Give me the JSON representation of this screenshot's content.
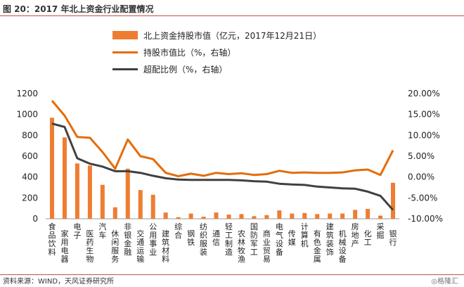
{
  "page": {
    "title": "图 20：2017 年北上资金行业配置情况",
    "source": "资料来源：WIND，天风证券研究所",
    "watermark": "◎格隆汇"
  },
  "chart_data": {
    "type": "bar",
    "categories": [
      "食品饮料",
      "家用电器",
      "电子",
      "医药生物",
      "汽车",
      "休闲服务",
      "非银金融",
      "交通运输",
      "公用事业",
      "建筑材料",
      "综合",
      "钢铁",
      "纺织服装",
      "通信",
      "轻工制造",
      "农林牧渔",
      "国防军工",
      "商业贸易",
      "电气设备",
      "传媒",
      "计算机",
      "有色金属",
      "建筑装饰",
      "机械设备",
      "房地产",
      "化工",
      "采掘",
      "银行"
    ],
    "series": [
      {
        "name": "北上资金持股市值（亿元，2017年12月21日）",
        "type": "bar",
        "axis": "left",
        "color": "#ee7d31",
        "values": [
          968,
          780,
          530,
          510,
          325,
          110,
          480,
          275,
          230,
          60,
          15,
          50,
          20,
          60,
          40,
          45,
          25,
          35,
          80,
          50,
          55,
          45,
          50,
          50,
          85,
          95,
          30,
          345
        ]
      },
      {
        "name": "持股市值比（%，右轴）",
        "type": "line",
        "axis": "right",
        "color": "#e46c0a",
        "values": [
          18.3,
          14.7,
          9.6,
          9.4,
          6.0,
          2.0,
          9.0,
          5.0,
          4.3,
          1.0,
          0.2,
          0.8,
          0.3,
          1.0,
          0.7,
          0.9,
          0.5,
          0.7,
          1.5,
          1.0,
          1.1,
          1.0,
          1.0,
          1.1,
          1.6,
          1.8,
          0.5,
          6.4
        ]
      },
      {
        "name": "超配比例（%，右轴）",
        "type": "line",
        "axis": "right",
        "color": "#404040",
        "values": [
          12.8,
          12.0,
          4.5,
          3.2,
          2.5,
          1.4,
          1.4,
          1.0,
          0.3,
          -0.3,
          -0.6,
          -0.7,
          -0.7,
          -0.7,
          -0.7,
          -0.8,
          -1.0,
          -1.1,
          -1.6,
          -1.8,
          -1.9,
          -2.3,
          -2.5,
          -2.7,
          -2.8,
          -3.5,
          -4.5,
          -7.9
        ]
      }
    ],
    "y_left": {
      "min": 0,
      "max": 1200,
      "ticks": [
        0,
        200,
        400,
        600,
        800,
        1000,
        1200
      ]
    },
    "y_right": {
      "min": -10,
      "max": 20,
      "ticks": [
        "-10.00%",
        "-5.00%",
        "0.00%",
        "5.00%",
        "10.00%",
        "15.00%",
        "20.00%"
      ]
    },
    "legend": {
      "placement": "top"
    }
  }
}
